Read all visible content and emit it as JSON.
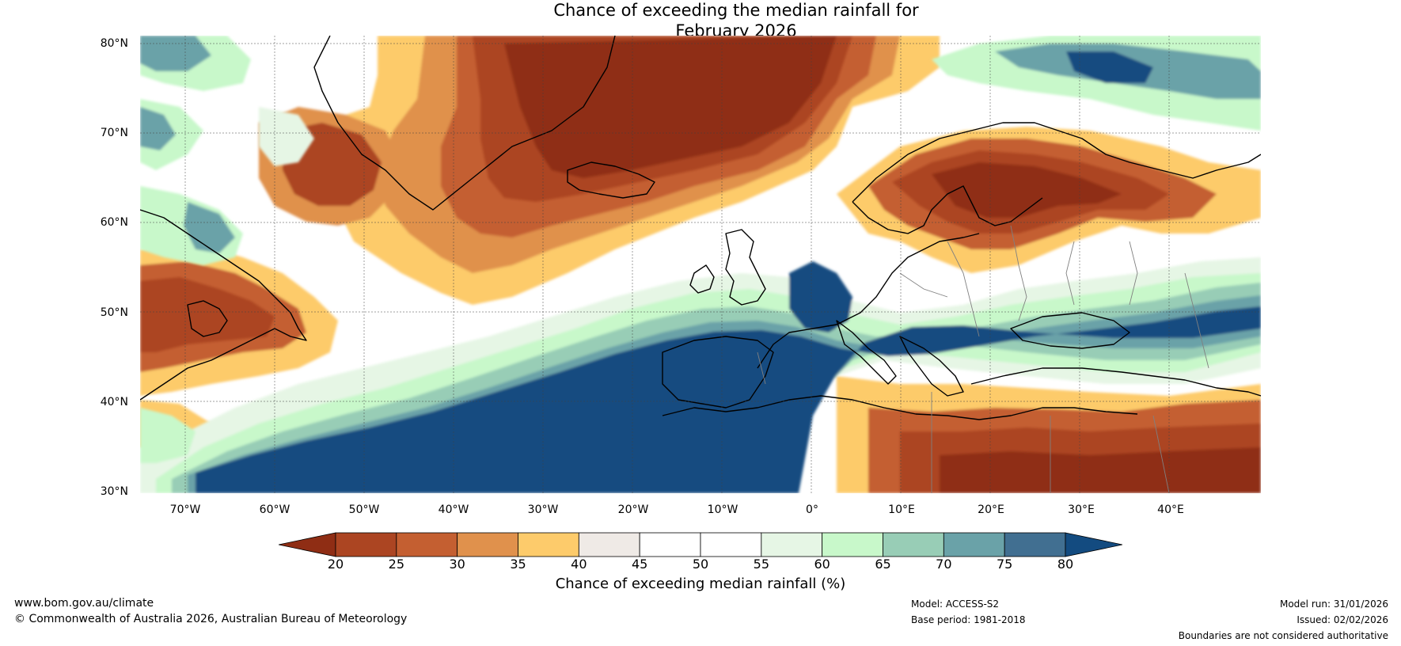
{
  "title": {
    "line1": "Chance of exceeding the median rainfall for",
    "line2": "February 2026"
  },
  "map": {
    "lat_labels": [
      "80°N",
      "70°N",
      "60°N",
      "50°N",
      "40°N",
      "30°N"
    ],
    "lon_labels": [
      "70°W",
      "60°W",
      "50°W",
      "40°W",
      "30°W",
      "20°W",
      "10°W",
      "0°",
      "10°E",
      "20°E",
      "30°E",
      "40°E"
    ],
    "colors": {
      "c20": "#8f2d14",
      "c25": "#ac4522",
      "c30": "#c45f31",
      "c35": "#e0914c",
      "c40": "#fdcb6b",
      "c45": "#efeae6",
      "c50": "#ffffff",
      "c55": "#ffffff",
      "c60": "#e6f6e5",
      "c65": "#c8f8ca",
      "c70": "#98cdb6",
      "c75": "#6aa2a8",
      "c80": "#416f91",
      "c85": "#134b80"
    }
  },
  "colorbar": {
    "ticks": [
      "20",
      "25",
      "30",
      "35",
      "40",
      "45",
      "50",
      "55",
      "60",
      "65",
      "70",
      "75",
      "80"
    ],
    "colors": [
      "#ac4522",
      "#c45f31",
      "#e0914c",
      "#fdcb6b",
      "#efeae6",
      "#ffffff",
      "#ffffff",
      "#e6f6e5",
      "#c8f8ca",
      "#98cdb6",
      "#6aa2a8",
      "#416f91"
    ],
    "low_color": "#8f2d14",
    "high_color": "#134b80",
    "label": "Chance of exceeding median rainfall (%)"
  },
  "footer": {
    "website": "www.bom.gov.au/climate",
    "copyright": "© Commonwealth of Australia 2026, Australian Bureau of Meteorology",
    "model": "Model: ACCESS-S2",
    "base_period": "Base period: 1981-2018",
    "model_run": "Model run: 31/01/2026",
    "issued": "Issued: 02/02/2026",
    "disclaimer": "Boundaries are not considered authoritative"
  }
}
